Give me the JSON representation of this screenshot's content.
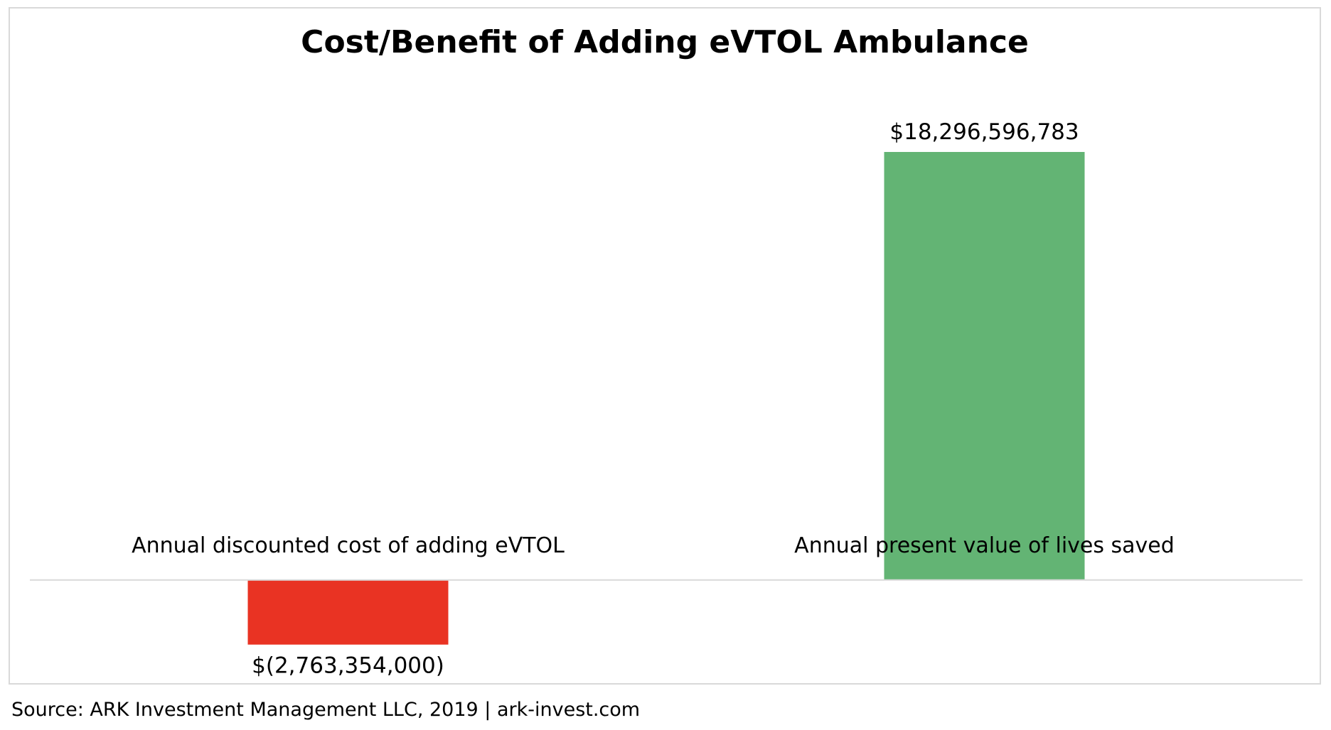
{
  "chart_data": {
    "type": "bar",
    "title": "Cost/Benefit of Adding eVTOL Ambulance",
    "categories": [
      "Annual discounted cost of adding eVTOL",
      "Annual present value of lives saved"
    ],
    "values": [
      -2763354000,
      18296596783
    ],
    "data_labels": [
      "$(2,763,354,000)",
      "$18,296,596,783"
    ],
    "colors": [
      "#e93323",
      "#63b474"
    ],
    "ylim": [
      -3500000000,
      22000000000
    ],
    "grid": false,
    "legend": "none"
  },
  "source": "Source: ARK Investment Management LLC, 2019 | ark-invest.com",
  "axis_color": "#d9d9d9"
}
